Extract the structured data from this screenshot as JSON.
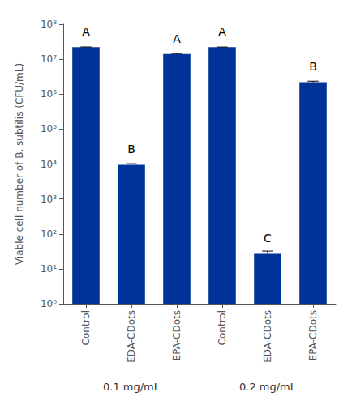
{
  "chart_data": {
    "type": "bar",
    "ylabel": "Viable cell number of B. subtilis (CFU/mL)",
    "groups": [
      "0.1 mg/mL",
      "0.2 mg/mL"
    ],
    "categories": [
      "Control",
      "EDA-CDots",
      "EPA-CDots",
      "Control",
      "EDA-CDots",
      "EPA-CDots"
    ],
    "values": [
      22000000.0,
      9500.0,
      14000000.0,
      22000000.0,
      28,
      2200000.0
    ],
    "errors": [
      400000.0,
      700.0,
      500000.0,
      300000.0,
      4,
      150000.0
    ],
    "letters": [
      "A",
      "B",
      "A",
      "A",
      "C",
      "B"
    ],
    "color": "#003399",
    "log": "y",
    "ylim": [
      1,
      100000000.0
    ],
    "yticks": [
      {
        "value": 1,
        "label": "10⁰"
      },
      {
        "value": 10,
        "label": "10¹"
      },
      {
        "value": 100,
        "label": "10²"
      },
      {
        "value": 1000,
        "label": "10³"
      },
      {
        "value": 10000,
        "label": "10⁴"
      },
      {
        "value": 100000,
        "label": "10⁵"
      },
      {
        "value": 1000000,
        "label": "10⁶"
      },
      {
        "value": 10000000,
        "label": "10⁷"
      },
      {
        "value": 100000000,
        "label": "10⁸"
      }
    ],
    "grid": false
  }
}
